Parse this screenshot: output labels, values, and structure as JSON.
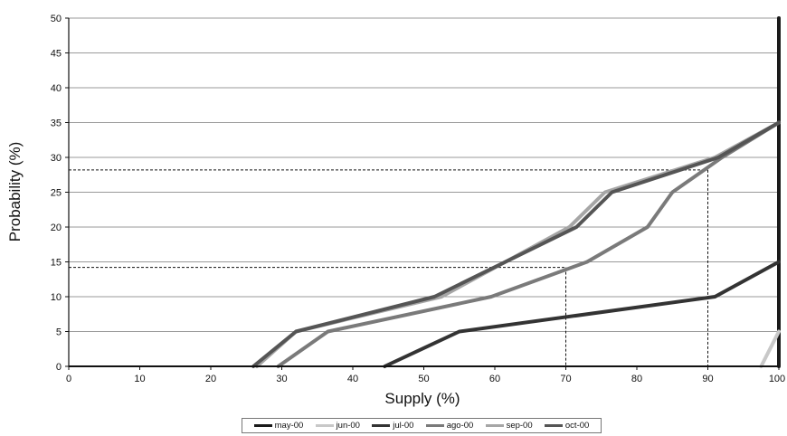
{
  "chart_data": {
    "type": "line",
    "title": "",
    "xlabel": "Supply (%)",
    "ylabel": "Probability (%)",
    "xlim": [
      0,
      100
    ],
    "ylim": [
      0,
      50
    ],
    "x_ticks": [
      0,
      10,
      20,
      30,
      40,
      50,
      60,
      70,
      80,
      90,
      100
    ],
    "y_ticks": [
      0,
      5,
      10,
      15,
      20,
      25,
      30,
      35,
      40,
      45,
      50
    ],
    "grid": "horizontal",
    "legend_position": "bottom",
    "series": [
      {
        "name": "may-00",
        "color": "#1a1a1a",
        "points": [
          [
            100,
            0
          ],
          [
            100,
            50
          ]
        ]
      },
      {
        "name": "jun-00",
        "color": "#c8c8c8",
        "points": [
          [
            97.5,
            0
          ],
          [
            100,
            5
          ]
        ]
      },
      {
        "name": "jul-00",
        "color": "#333333",
        "points": [
          [
            44.5,
            0
          ],
          [
            55,
            5
          ],
          [
            91,
            10
          ],
          [
            100,
            15
          ]
        ]
      },
      {
        "name": "ago-00",
        "color": "#7a7a7a",
        "points": [
          [
            29.5,
            0
          ],
          [
            36.5,
            5
          ],
          [
            59.5,
            10
          ],
          [
            73,
            15
          ],
          [
            81.5,
            20
          ],
          [
            85,
            25
          ],
          [
            92,
            30
          ],
          [
            100,
            35
          ]
        ]
      },
      {
        "name": "sep-00",
        "color": "#a6a6a6",
        "points": [
          [
            26.5,
            0
          ],
          [
            32,
            5
          ],
          [
            52.5,
            10
          ],
          [
            70.5,
            20
          ],
          [
            75.5,
            25
          ],
          [
            91,
            30
          ],
          [
            100,
            35
          ]
        ]
      },
      {
        "name": "oct-00",
        "color": "#555555",
        "points": [
          [
            26,
            0
          ],
          [
            32,
            5
          ],
          [
            51.5,
            10
          ],
          [
            71.5,
            20
          ],
          [
            76.5,
            25
          ],
          [
            91.5,
            30
          ],
          [
            100,
            35
          ]
        ]
      }
    ],
    "reference_lines": [
      {
        "x": 70,
        "y": 14.2
      },
      {
        "x": 90,
        "y": 28.2
      }
    ]
  }
}
